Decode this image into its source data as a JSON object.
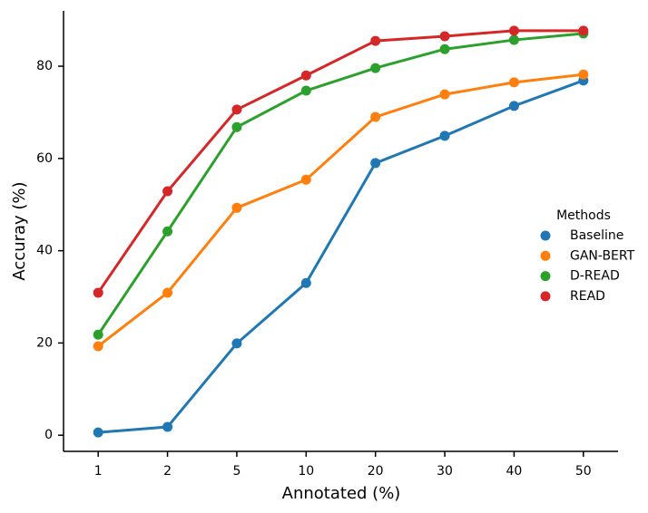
{
  "chart_data": {
    "type": "line",
    "x_label": "Annotated (%)",
    "y_label": "Accuray (%)",
    "categories": [
      "1",
      "2",
      "5",
      "10",
      "20",
      "30",
      "40",
      "50"
    ],
    "series": [
      {
        "name": "Baseline",
        "color": "#1f77b4",
        "values": [
          0.6,
          1.8,
          19.9,
          33.0,
          59.0,
          64.9,
          71.4,
          76.9
        ]
      },
      {
        "name": "GAN-BERT",
        "color": "#ff7f0e",
        "values": [
          19.3,
          30.9,
          49.3,
          55.4,
          69.0,
          73.9,
          76.5,
          78.2
        ]
      },
      {
        "name": "D-READ",
        "color": "#2ca02c",
        "values": [
          21.8,
          44.2,
          66.8,
          74.7,
          79.6,
          83.7,
          85.7,
          87.1
        ]
      },
      {
        "name": "READ",
        "color": "#d62728",
        "values": [
          30.9,
          52.9,
          70.6,
          78.0,
          85.5,
          86.5,
          87.7,
          87.7
        ]
      }
    ],
    "legend_title": "Methods",
    "legend_position": "right",
    "ylim": [
      -3.5,
      92
    ],
    "yticks": [
      0,
      20,
      40,
      60,
      80
    ],
    "grid": false
  }
}
